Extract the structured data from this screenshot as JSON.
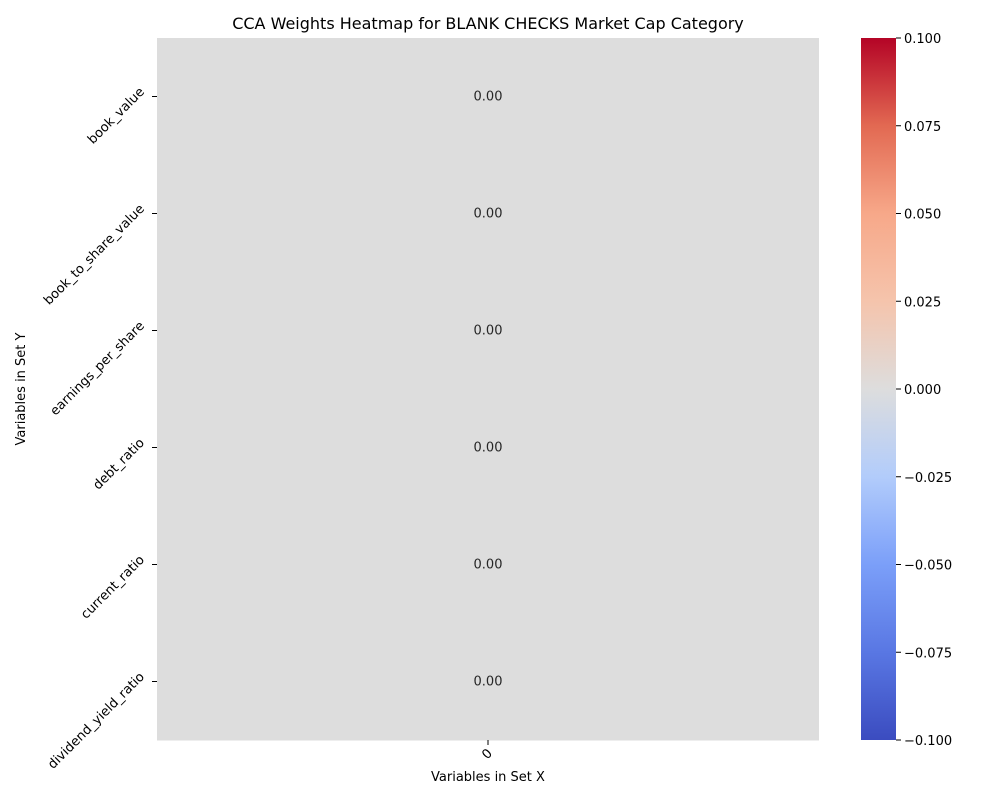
{
  "chart_data": {
    "type": "heatmap",
    "title": "CCA Weights Heatmap for BLANK CHECKS Market Cap Category",
    "xlabel": "Variables in Set X",
    "ylabel": "Variables in Set Y",
    "x_categories": [
      "0"
    ],
    "y_categories": [
      "book_value",
      "book_to_share_value",
      "earnings_per_share",
      "debt_ratio",
      "current_ratio",
      "dividend_yield_ratio"
    ],
    "values": [
      [
        0.0
      ],
      [
        0.0
      ],
      [
        0.0
      ],
      [
        0.0
      ],
      [
        0.0
      ],
      [
        0.0
      ]
    ],
    "annotation_format": "0.00",
    "colormap": "coolwarm",
    "colors": {
      "low": "#3b4cc0",
      "mid": "#dddddd",
      "high": "#b40426"
    },
    "colorbar": {
      "range": [
        -0.1,
        0.1
      ],
      "ticks": [
        "−0.100",
        "−0.075",
        "−0.050",
        "−0.025",
        "0.000",
        "0.025",
        "0.050",
        "0.075",
        "0.100"
      ],
      "tick_values": [
        -0.1,
        -0.075,
        -0.05,
        -0.025,
        0.0,
        0.025,
        0.05,
        0.075,
        0.1
      ]
    }
  }
}
